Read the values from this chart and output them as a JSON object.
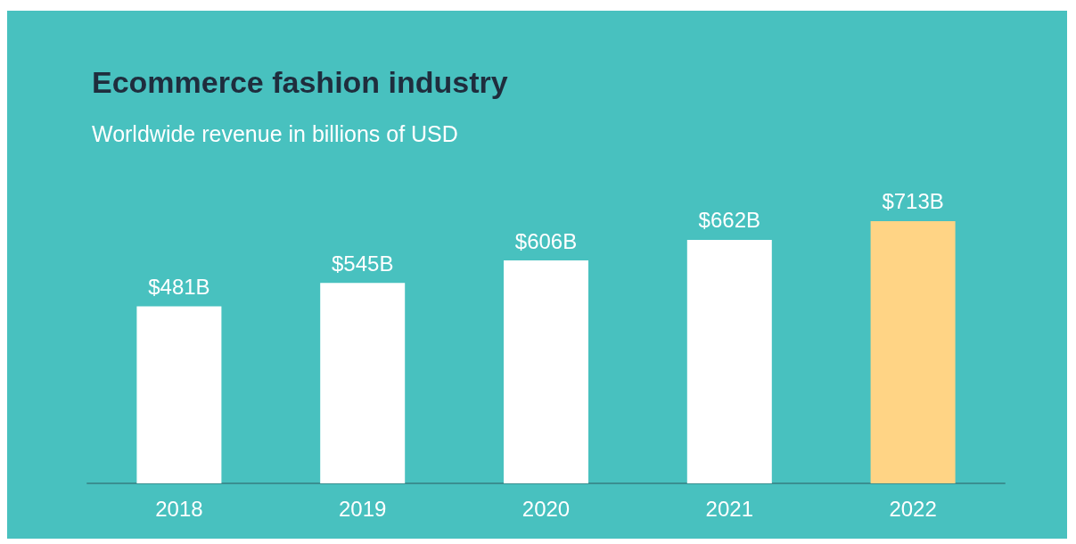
{
  "chart_data": {
    "type": "bar",
    "title": "Ecommerce fashion industry",
    "subtitle": "Worldwide revenue in billions of USD",
    "categories": [
      "2018",
      "2019",
      "2020",
      "2021",
      "2022"
    ],
    "values": [
      481,
      545,
      606,
      662,
      713
    ],
    "colors": [
      "#ffffff",
      "#ffffff",
      "#ffffff",
      "#ffffff",
      "#ffd485"
    ],
    "value_labels": [
      "$481B",
      "$545B",
      "$606B",
      "$662B",
      "$713B"
    ]
  }
}
